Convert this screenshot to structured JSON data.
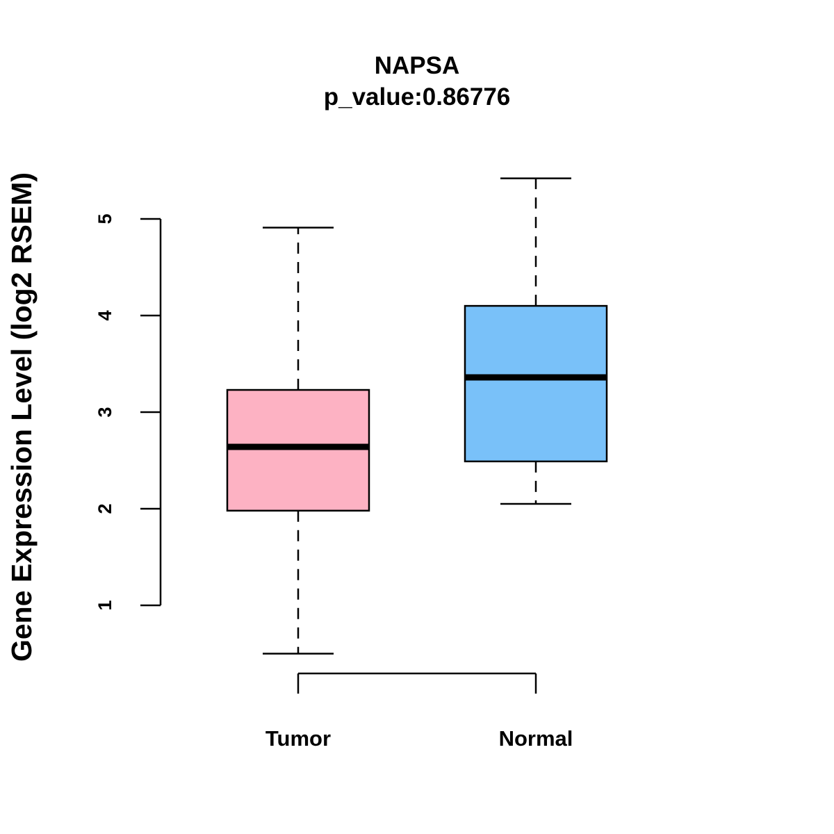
{
  "chart_data": {
    "type": "boxplot",
    "title": "NAPSA",
    "subtitle": "p_value:0.86776",
    "xlabel": "",
    "ylabel": "Gene Expression Level (log2 RSEM)",
    "categories": [
      "Tumor",
      "Normal"
    ],
    "yticks": [
      "1",
      "2",
      "3",
      "4",
      "5"
    ],
    "ylim": [
      1,
      5
    ],
    "grid": false,
    "legend": "none",
    "boxes": [
      {
        "name": "Tumor",
        "whisker_low": 0.5,
        "q1": 1.98,
        "median": 2.64,
        "q3": 3.23,
        "whisker_high": 4.91,
        "color": "#FDB2C3"
      },
      {
        "name": "Normal",
        "whisker_low": 2.05,
        "q1": 2.49,
        "median": 3.36,
        "q3": 4.1,
        "whisker_high": 5.42,
        "color": "#79C1F9"
      }
    ]
  }
}
